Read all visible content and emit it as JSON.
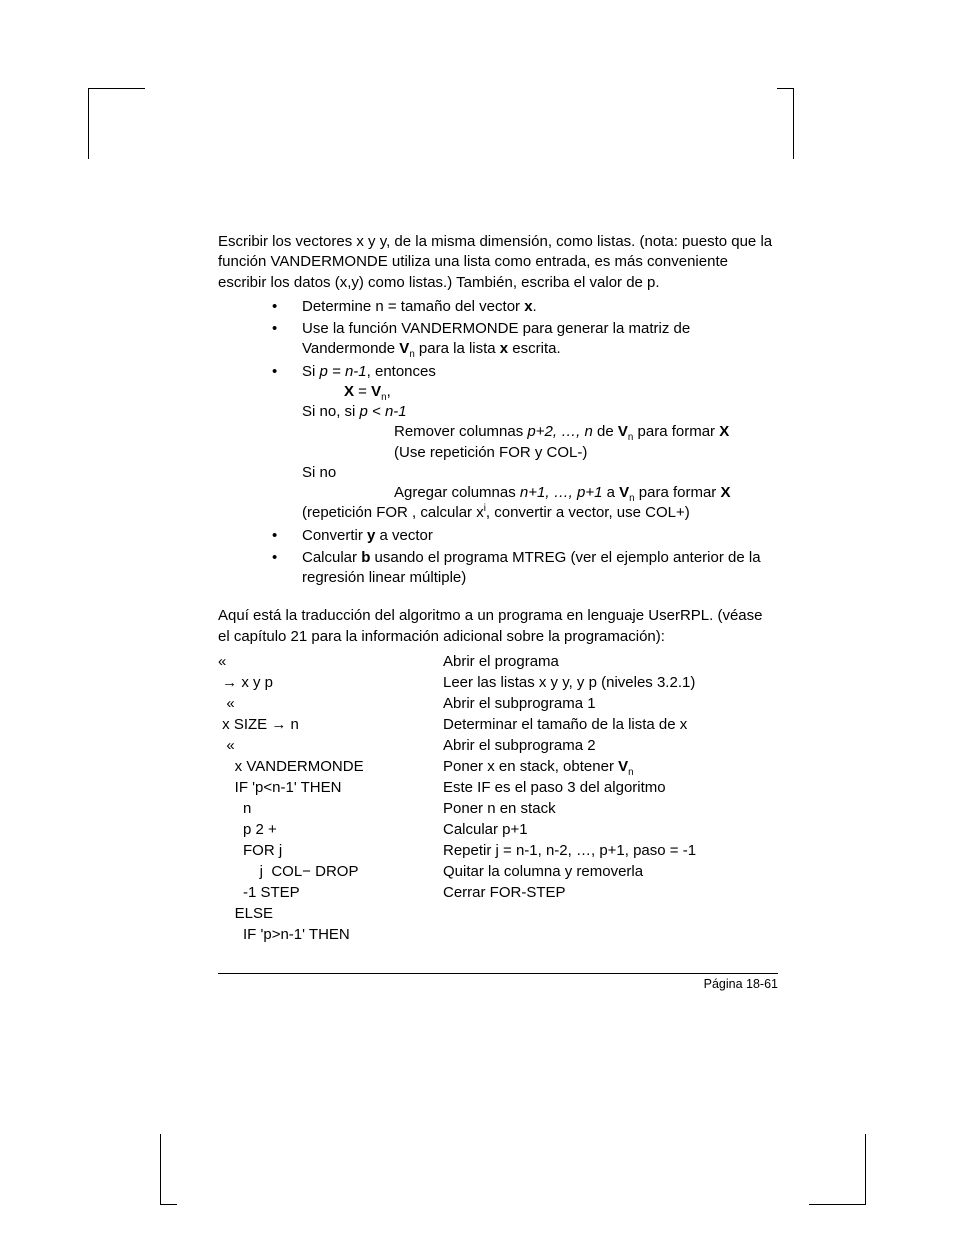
{
  "intro": "Escribir los vectores x y y, de la misma dimensión, como listas. (nota: puesto que la función VANDERMONDE utiliza una lista como entrada, es más conveniente escribir los datos (x,y) como listas.) También, escriba el valor de p.",
  "b1_pre": "Determine n = tamaño del vector ",
  "b1_x": "x",
  "b1_post": ".",
  "b2_a": "Use la función VANDERMONDE para generar la matriz de Vandermonde ",
  "b2_V": "V",
  "b2_n": "n",
  "b2_b": " para la lista ",
  "b2_x": "x",
  "b2_c": " escrita.",
  "b3_si": "Si ",
  "b3_cond": "p = n-1",
  "b3_ent": ", entonces",
  "b3_eq_X": "X",
  "b3_eq_eq": " = ",
  "b3_eq_V": "V",
  "b3_eq_n": "n",
  "b3_eq_comma": ",",
  "b3_sinosi": "Si no, si  ",
  "b3_cond2": "p < n-1",
  "b3_rem_a": "Remover columnas ",
  "b3_rem_i": "p+2, …, n",
  "b3_rem_b": " de ",
  "b3_rem_V": "V",
  "b3_rem_n": "n",
  "b3_rem_c": " para formar ",
  "b3_rem_X": "X",
  "b3_rem_use": "(Use repetición FOR y COL-)",
  "b3_sino": "Si no",
  "b3_add_a": "Agregar columnas ",
  "b3_add_i": "n+1, …, p+1",
  "b3_add_b": " a ",
  "b3_add_V": "V",
  "b3_add_n": "n",
  "b3_add_c": " para formar ",
  "b3_add_X": "X",
  "b3_rep_a": "(repetición FOR , calcular x",
  "b3_rep_i": "i",
  "b3_rep_b": ", convertir a vector, use COL+)",
  "b4_a": "Convertir ",
  "b4_y": "y",
  "b4_b": " a vector",
  "b5_a": "Calcular ",
  "b5_b": "b",
  "b5_c": " usando el programa MTREG (ver el ejemplo anterior de la regresión linear múltiple)",
  "mid": "Aquí está la traducción del algoritmo a un programa en lenguaje UserRPL. (véase el capítulo 21 para la información adicional sobre la programación):",
  "code": [
    {
      "l": "«",
      "r_pre": "Abrir el programa"
    },
    {
      "l": " → x y p",
      "r_pre": "Leer las listas x y y, y p (niveles 3.2.1)"
    },
    {
      "l": "  «",
      "r_pre": "Abrir el subprograma 1"
    },
    {
      "l": " x SIZE → n",
      "r_pre": "Determinar el tamaño de la lista de x"
    },
    {
      "l": "  «",
      "r_pre": "Abrir el subprograma 2"
    },
    {
      "l": "    x VANDERMONDE",
      "r_pre": "Poner x en stack, obtener ",
      "r_bold": "V",
      "r_sub": "n"
    },
    {
      "l": "    IF 'p<n-1' THEN",
      "r_pre": "Este IF es el paso 3 del algoritmo"
    },
    {
      "l": "      n",
      "r_pre": "Poner n en stack"
    },
    {
      "l": "      p 2 +",
      "r_pre": "Calcular p+1"
    },
    {
      "l": "      FOR j",
      "r_pre": "Repetir j = n-1, n-2, …, p+1, paso = -1"
    },
    {
      "l": "          j  COL− DROP",
      "r_pre": "Quitar la columna y removerla"
    },
    {
      "l": "      -1 STEP",
      "r_pre": "Cerrar FOR-STEP"
    },
    {
      "l": "    ELSE",
      "r_pre": ""
    },
    {
      "l": "      IF 'p>n-1' THEN",
      "r_pre": ""
    }
  ],
  "footer": "Página 18-61"
}
